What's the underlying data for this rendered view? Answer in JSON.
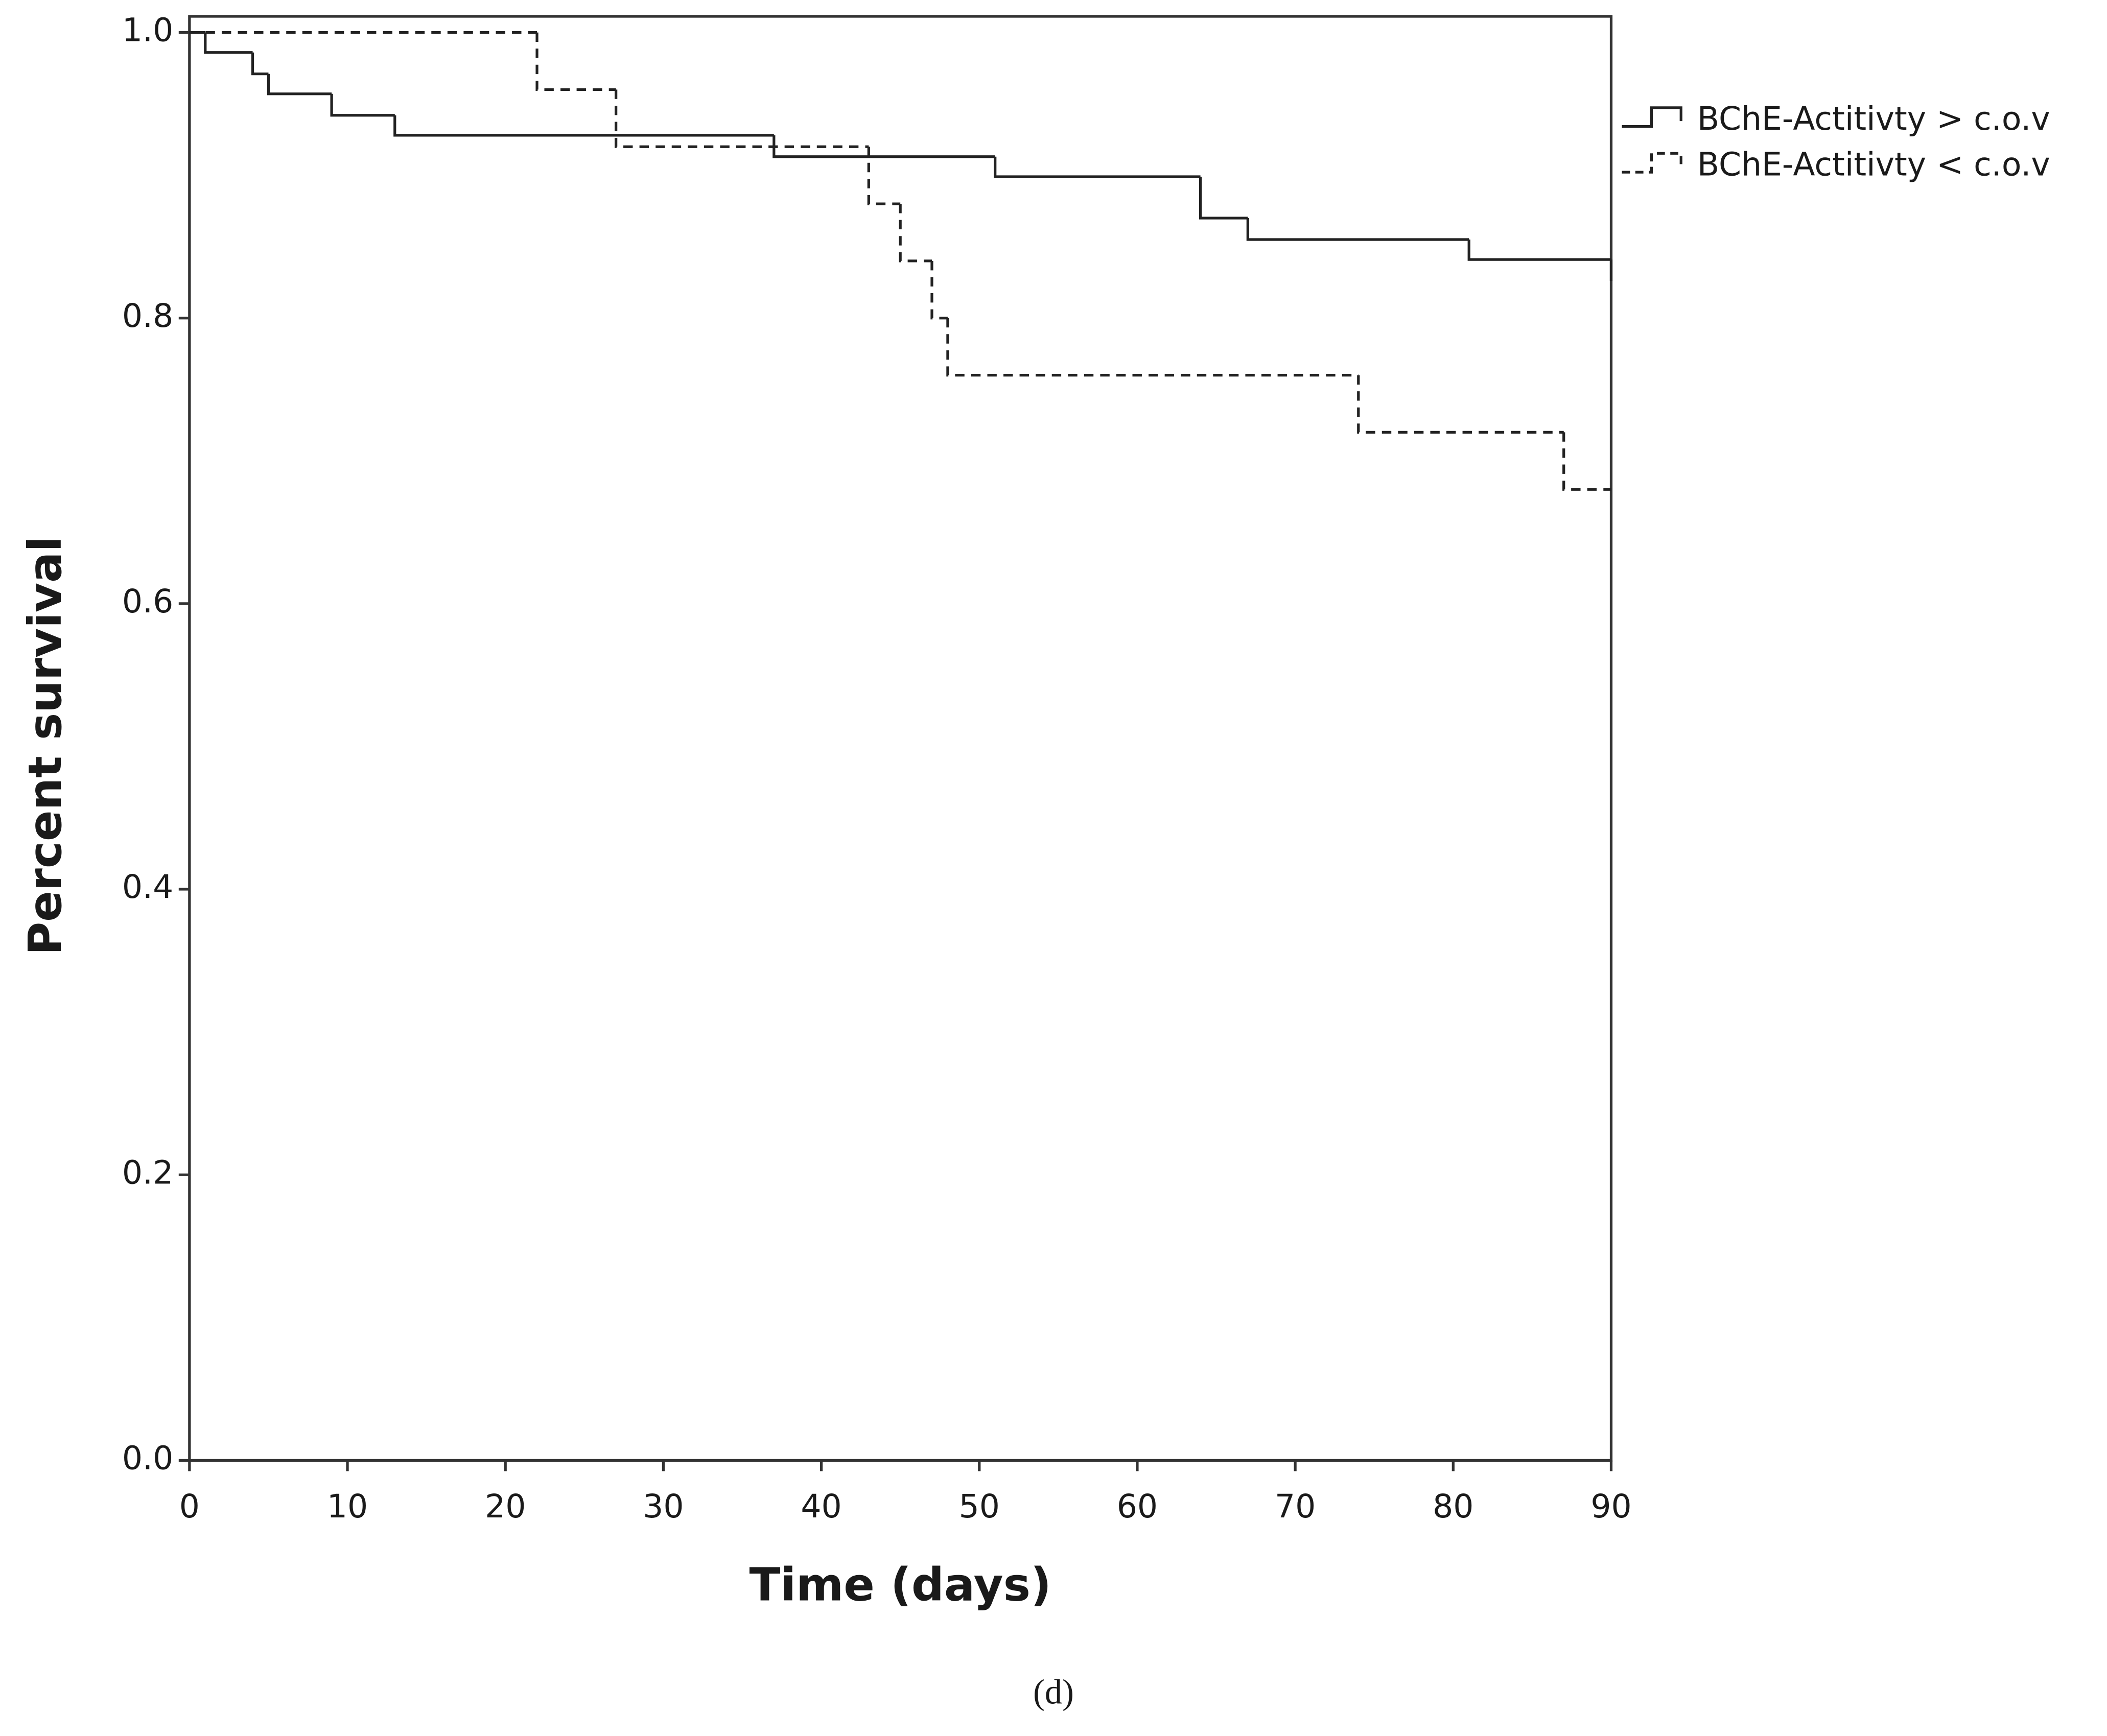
{
  "chart_data": {
    "type": "step",
    "caption": "(d)",
    "xlabel": "Time (days)",
    "ylabel": "Percent survival",
    "xlim": [
      0,
      90
    ],
    "ylim": [
      0,
      1
    ],
    "xticks": [
      0,
      10,
      20,
      30,
      40,
      50,
      60,
      70,
      80,
      90
    ],
    "yticks": [
      {
        "value": 0,
        "label": "0.0"
      },
      0.2,
      0.4,
      0.6,
      0.8,
      {
        "value": 1,
        "label": "1.0"
      }
    ],
    "legend": "upper right outside",
    "series": [
      {
        "name": "BChE-Actitivty > c.o.v",
        "color": "#222222",
        "dash": "solid",
        "x": [
          0,
          1,
          4,
          5,
          9,
          13,
          37,
          51,
          64,
          67,
          81,
          90
        ],
        "values": [
          1.0,
          0.986,
          0.971,
          0.957,
          0.942,
          0.928,
          0.913,
          0.899,
          0.87,
          0.855,
          0.841,
          0.826
        ]
      },
      {
        "name": "BChE-Actitivty < c.o.v",
        "color": "#222222",
        "dash": "dashed",
        "x": [
          0,
          22,
          27,
          43,
          45,
          47,
          48,
          74,
          87,
          90
        ],
        "values": [
          1.0,
          0.96,
          0.92,
          0.88,
          0.84,
          0.8,
          0.76,
          0.72,
          0.68,
          0.68
        ]
      }
    ]
  }
}
